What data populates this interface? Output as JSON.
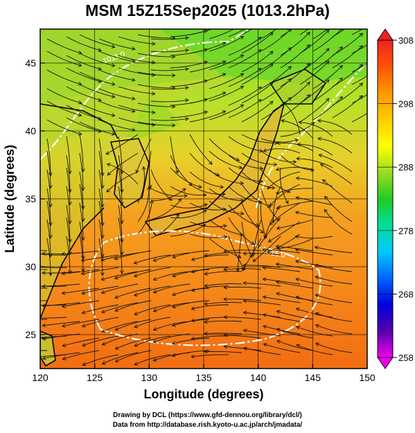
{
  "title": "MSM 15Z15Sep2025 (1013.2hPa)",
  "map": {
    "xlabel": "Longitude (degrees)",
    "ylabel": "Latitude  (degrees)",
    "xlim": [
      120,
      150
    ],
    "ylim": [
      22.5,
      47.5
    ],
    "xticks": [
      120,
      125,
      130,
      135,
      140,
      145,
      150
    ],
    "yticks": [
      25,
      30,
      35,
      40,
      45
    ],
    "contour_labels": [
      "1011.0",
      "1016.0"
    ],
    "colorbar": {
      "ticks": [
        308,
        298,
        288,
        278,
        268,
        258
      ],
      "min": 258,
      "max": 308,
      "colors": [
        "#ee00ee",
        "#5500aa",
        "#0000dd",
        "#0066ff",
        "#00c8ff",
        "#00dd99",
        "#22cc22",
        "#99dd22",
        "#ffff00",
        "#ffcc00",
        "#ff9900",
        "#ff5500",
        "#ee2222"
      ]
    }
  },
  "credits": {
    "line1": "Drawing by DCL (https://www.gfd-dennou.org/library/dcl/)",
    "line2": "Data from http://database.rish.kyoto-u.ac.jp/arch/jmadata/"
  }
}
